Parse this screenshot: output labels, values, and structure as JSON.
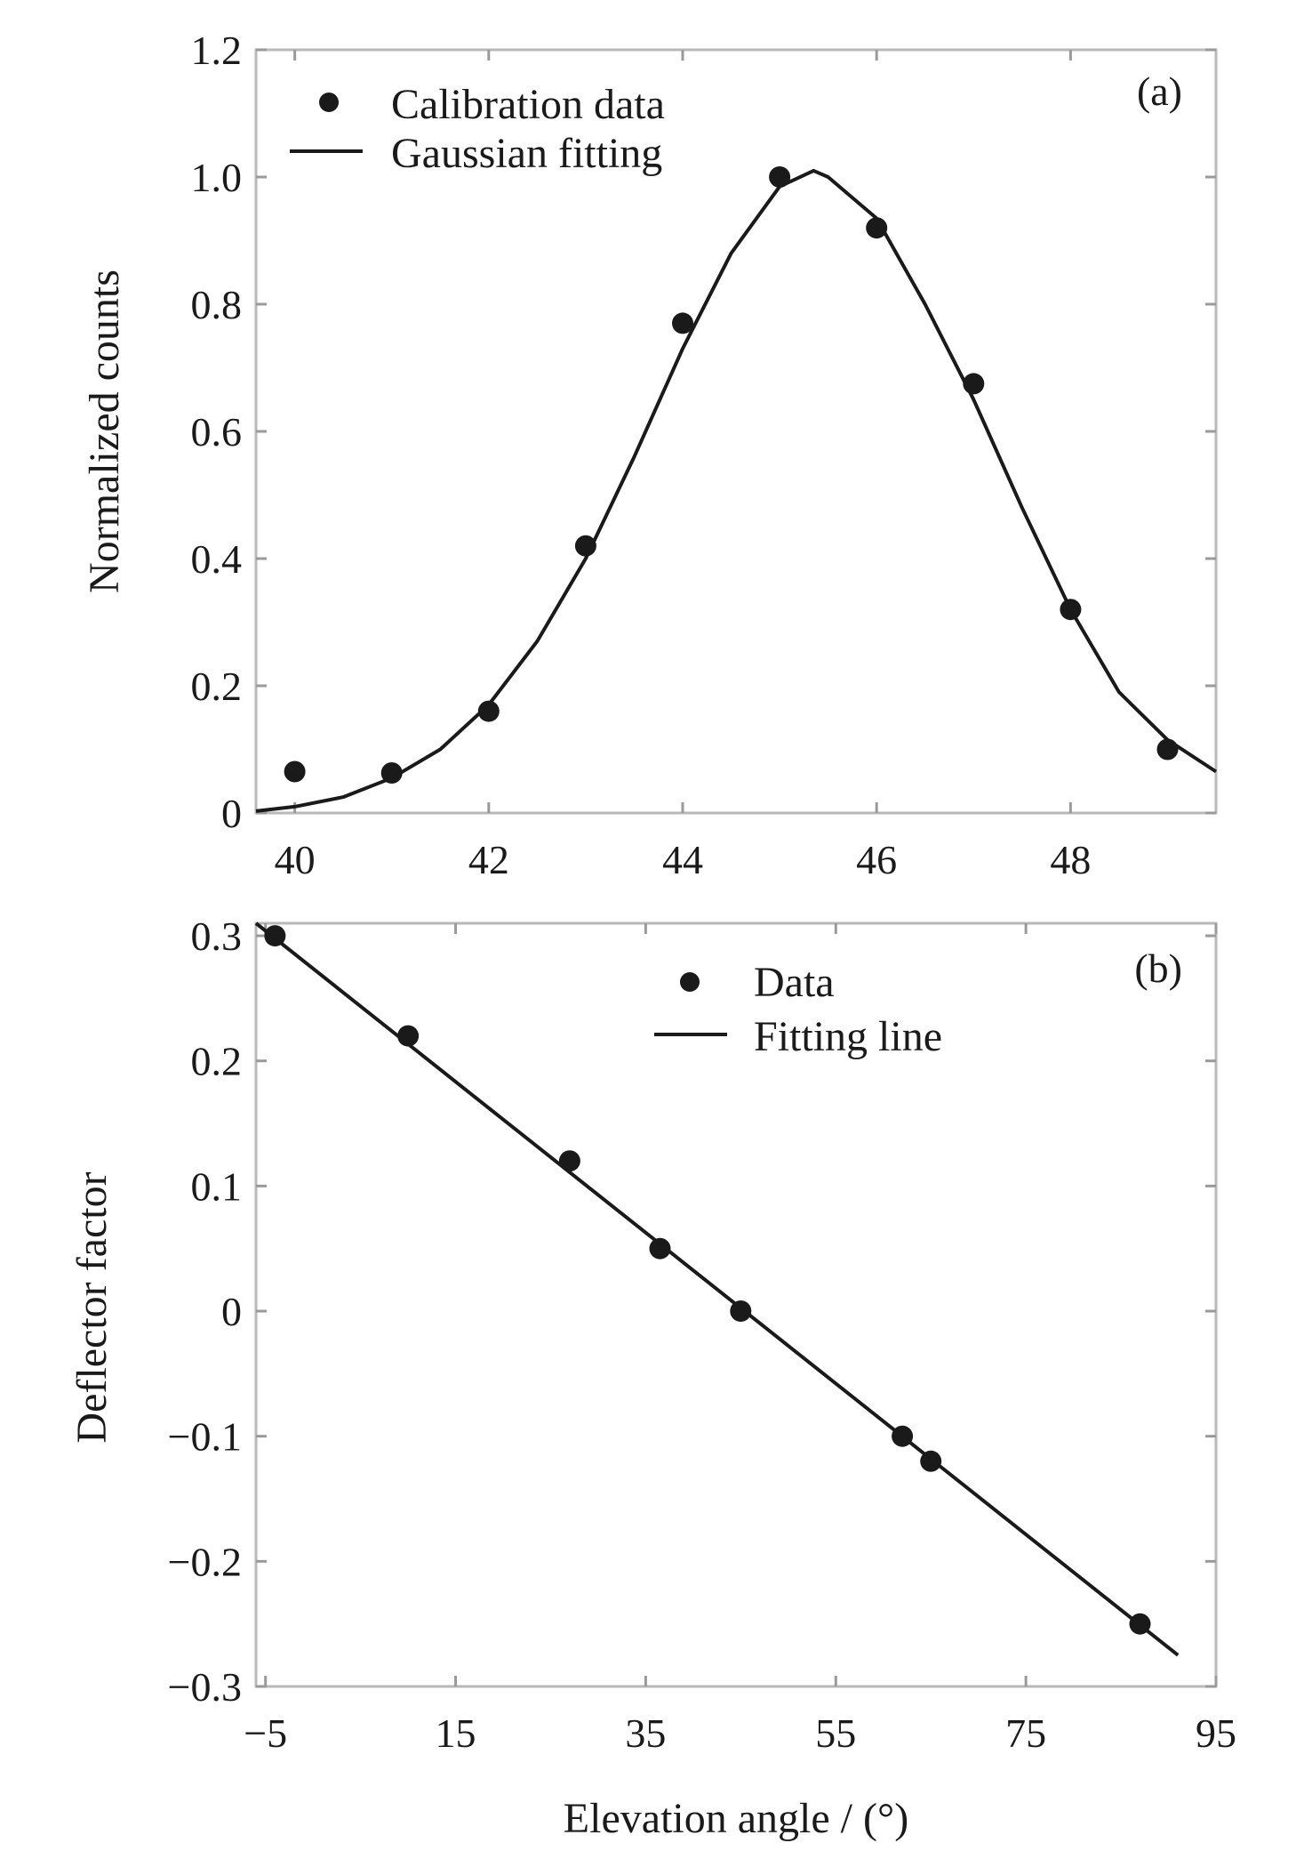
{
  "chart_data": [
    {
      "type": "scatter",
      "panel_label": "(a)",
      "xlabel": "",
      "ylabel": "Normalized counts",
      "xlim": [
        39.6,
        49.5
      ],
      "ylim": [
        0,
        1.2
      ],
      "xticks": [
        40,
        42,
        44,
        46,
        48
      ],
      "yticks": [
        0,
        0.2,
        0.4,
        0.6,
        0.8,
        1.0,
        1.2
      ],
      "xtick_labels": [
        "40",
        "42",
        "44",
        "46",
        "48"
      ],
      "ytick_labels": [
        "0",
        "0.2",
        "0.4",
        "0.6",
        "0.8",
        "1.0",
        "1.2"
      ],
      "legend_position": "top-left",
      "grid": false,
      "series": [
        {
          "name": "Calibration data",
          "kind": "points",
          "x": [
            40,
            41,
            42,
            43,
            44,
            45,
            46,
            47,
            48,
            49
          ],
          "y": [
            0.065,
            0.063,
            0.16,
            0.42,
            0.77,
            1.0,
            0.92,
            0.675,
            0.32,
            0.1
          ]
        },
        {
          "name": "Gaussian fitting",
          "kind": "line",
          "x": [
            39.6,
            40.0,
            40.5,
            41.0,
            41.5,
            42.0,
            42.5,
            43.0,
            43.5,
            44.0,
            44.5,
            45.0,
            45.35,
            45.5,
            46.0,
            46.5,
            47.0,
            47.5,
            48.0,
            48.5,
            49.0,
            49.5
          ],
          "y": [
            0.003,
            0.01,
            0.025,
            0.055,
            0.1,
            0.17,
            0.27,
            0.4,
            0.56,
            0.73,
            0.88,
            0.985,
            1.01,
            1.0,
            0.935,
            0.8,
            0.65,
            0.48,
            0.32,
            0.19,
            0.115,
            0.065
          ]
        }
      ]
    },
    {
      "type": "scatter",
      "panel_label": "(b)",
      "xlabel": "Elevation angle / (°)",
      "ylabel": "Deflector factor",
      "xlim": [
        -6,
        95
      ],
      "ylim": [
        -0.3,
        0.31
      ],
      "xticks": [
        -5,
        15,
        35,
        55,
        75,
        95
      ],
      "yticks": [
        0.3,
        0.2,
        0.1,
        0,
        -0.1,
        -0.2,
        -0.3
      ],
      "xtick_labels": [
        "−5",
        "15",
        "35",
        "55",
        "75",
        "95"
      ],
      "ytick_labels": [
        "0.3",
        "0.2",
        "0.1",
        "0",
        "−0.1",
        "−0.2",
        "−0.3"
      ],
      "legend_position": "top-center",
      "grid": false,
      "series": [
        {
          "name": "Data",
          "kind": "points",
          "x": [
            -4,
            10,
            27,
            36.5,
            45,
            62,
            65,
            87
          ],
          "y": [
            0.3,
            0.22,
            0.12,
            0.05,
            0.0,
            -0.1,
            -0.12,
            -0.25
          ]
        },
        {
          "name": "Fitting line",
          "kind": "line",
          "x": [
            -6,
            91
          ],
          "y": [
            0.31,
            -0.275
          ]
        }
      ]
    }
  ]
}
